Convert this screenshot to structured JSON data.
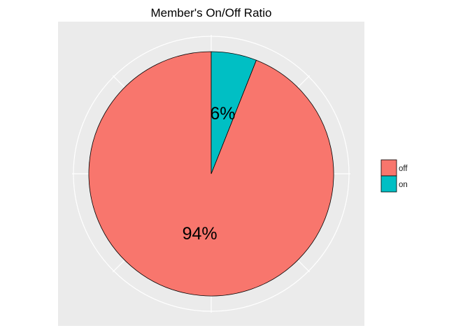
{
  "chart_data": {
    "type": "pie",
    "title": "Member's On/Off Ratio",
    "categories": [
      "off",
      "on"
    ],
    "values": [
      94,
      6
    ],
    "labels": [
      "94%",
      "6%"
    ],
    "colors": [
      "#F8766D",
      "#00BFC4"
    ],
    "panel_background": "#EBEBEB",
    "grid_color": "#FFFFFF",
    "outline_color": "#000000",
    "grid": true,
    "legend": {
      "position": "right",
      "entries": [
        "off",
        "on"
      ]
    }
  }
}
